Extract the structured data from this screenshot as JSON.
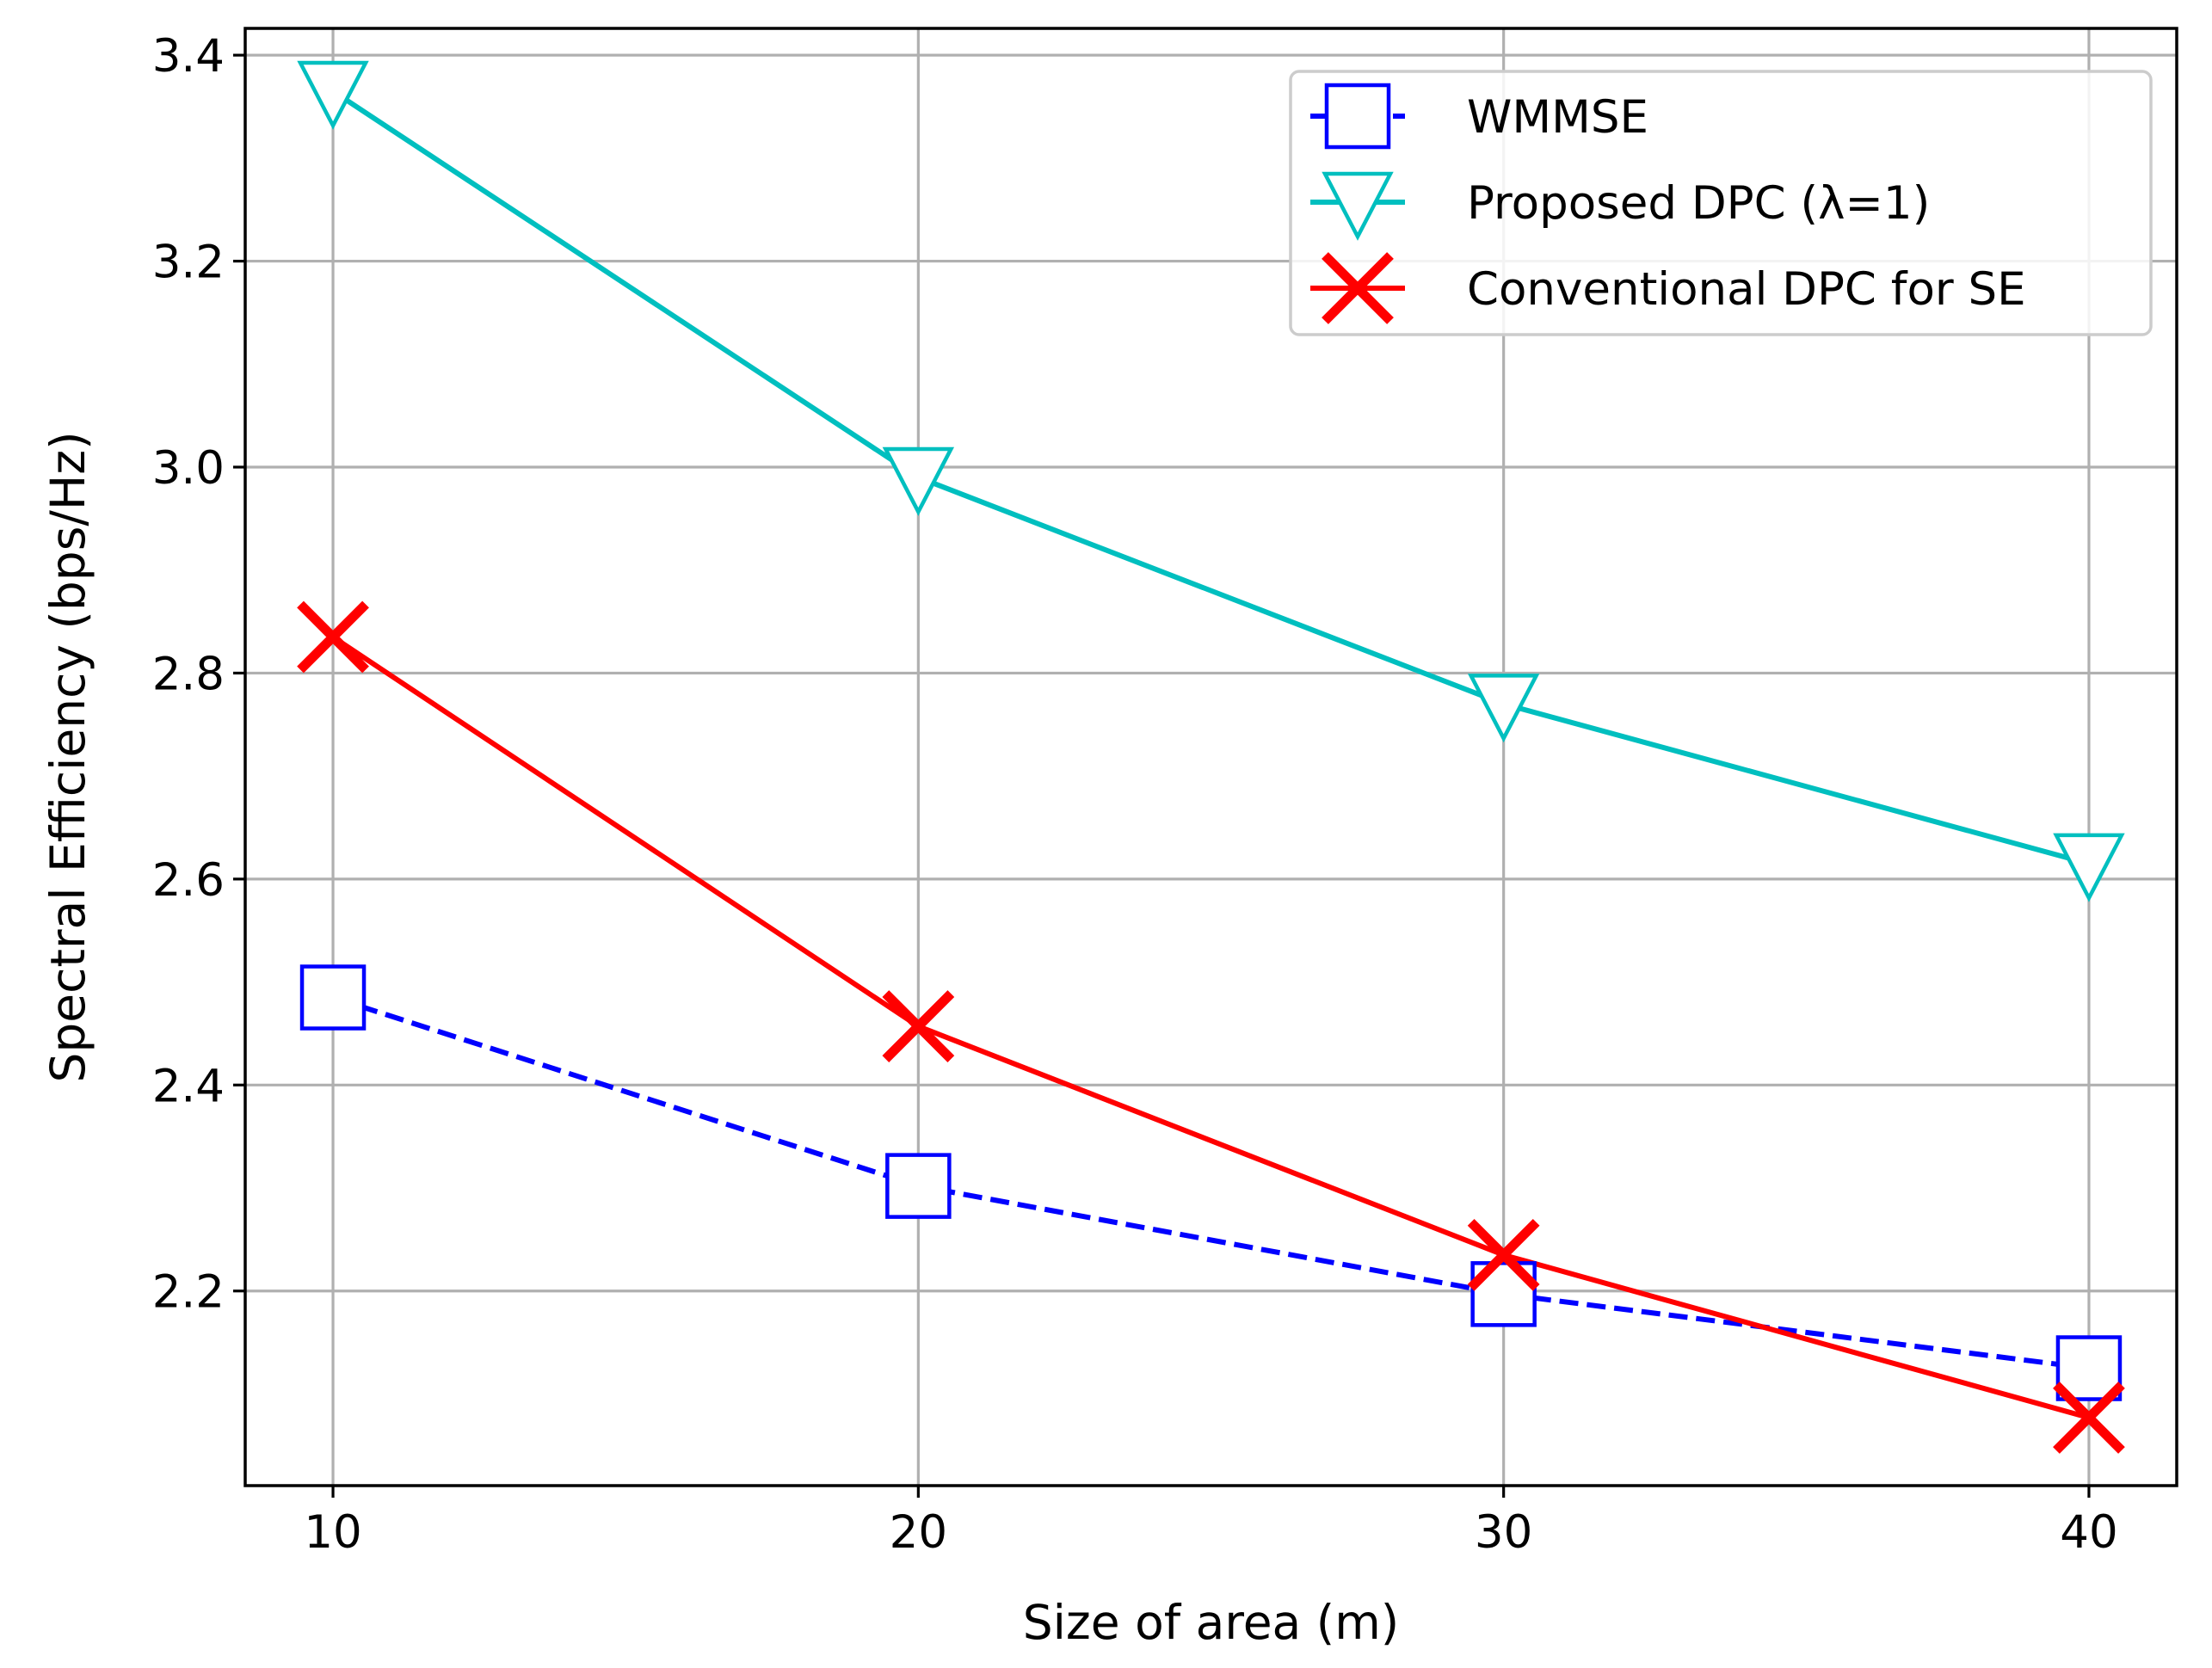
{
  "chart_data": {
    "type": "line",
    "xlabel": "Size of area (m)",
    "ylabel": "Spectral Efficiency (bps/Hz)",
    "x": [
      10,
      20,
      30,
      40
    ],
    "xticks": [
      "10",
      "20",
      "30",
      "40"
    ],
    "yticks": [
      "2.2",
      "2.4",
      "2.6",
      "2.8",
      "3.0",
      "3.2",
      "3.4"
    ],
    "xlim": [
      8.5,
      41.5
    ],
    "ylim": [
      2.011,
      3.426
    ],
    "grid": true,
    "legend_position": "top-right",
    "series": [
      {
        "name": "WMMSE",
        "values": [
          2.485,
          2.302,
          2.197,
          2.125
        ],
        "color": "#0000ff",
        "line": "dashed",
        "marker": "square"
      },
      {
        "name": "Proposed DPC (λ=1)",
        "values": [
          3.365,
          2.99,
          2.77,
          2.615
        ],
        "color": "#00bfbf",
        "line": "solid",
        "marker": "triangle-down"
      },
      {
        "name": "Conventional DPC for SE",
        "values": [
          2.835,
          2.457,
          2.235,
          2.077
        ],
        "color": "#ff0000",
        "line": "solid",
        "marker": "x"
      }
    ]
  }
}
